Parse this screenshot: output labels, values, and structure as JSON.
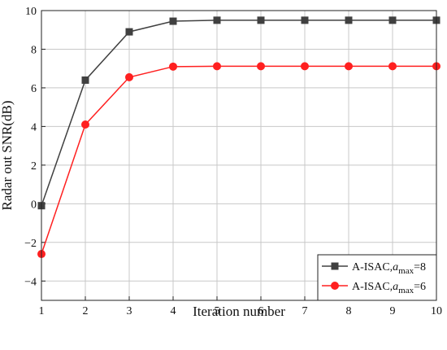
{
  "chart_data": {
    "type": "line",
    "xlabel": "Iteration number",
    "ylabel": "Radar out SNR(dB)",
    "xlim": [
      1,
      10
    ],
    "ylim": [
      -5,
      10
    ],
    "xticks": [
      1,
      2,
      3,
      4,
      5,
      6,
      7,
      8,
      9,
      10
    ],
    "yticks": [
      -4,
      -2,
      0,
      2,
      4,
      6,
      8,
      10
    ],
    "grid": true,
    "legend_position": "bottom-right",
    "x": [
      1,
      2,
      3,
      4,
      5,
      6,
      7,
      8,
      9,
      10
    ],
    "series": [
      {
        "name_prefix": "A-ISAC,",
        "name_var": "a",
        "name_sub": "max",
        "name_suffix": "=8",
        "color": "#404040",
        "marker": "square",
        "values": [
          -0.1,
          6.4,
          8.9,
          9.45,
          9.5,
          9.5,
          9.5,
          9.5,
          9.5,
          9.5
        ]
      },
      {
        "name_prefix": "A-ISAC,",
        "name_var": "a",
        "name_sub": "max",
        "name_suffix": "=6",
        "color": "#ff2020",
        "marker": "circle",
        "values": [
          -2.6,
          4.1,
          6.55,
          7.1,
          7.12,
          7.12,
          7.12,
          7.12,
          7.12,
          7.12
        ]
      }
    ]
  }
}
